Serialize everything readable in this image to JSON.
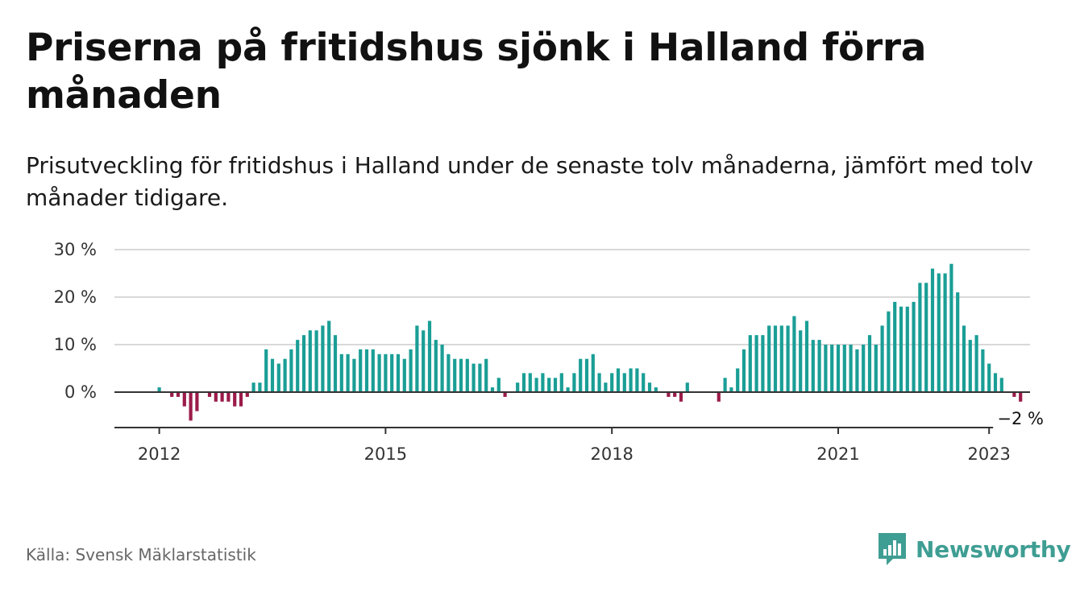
{
  "header": {
    "title": "Priserna på fritidshus sjönk i Halland förra månaden",
    "subtitle": "Prisutveckling för fritidshus i Halland under de senaste tolv månaderna, jämfört med tolv månader tidigare."
  },
  "footer": {
    "source": "Källa: Svensk Mäklarstatistik",
    "brand": "Newsworthy",
    "brand_icon": "bar-chart-logo-icon"
  },
  "colors": {
    "positive": "#1a9e96",
    "negative": "#9b1b4a",
    "grid": "#d9d9d9",
    "axis": "#333333",
    "brand": "#3f9e93"
  },
  "chart_data": {
    "type": "bar",
    "title": "",
    "xlabel": "",
    "ylabel": "",
    "ylim": [
      -7,
      30
    ],
    "yticks": [
      0,
      10,
      20,
      30
    ],
    "ytick_labels": [
      "0 %",
      "10 %",
      "20 %",
      "30 %"
    ],
    "xticks": [
      "2012",
      "2015",
      "2018",
      "2021",
      "2023"
    ],
    "last_value_label": "−2 %",
    "grid": true,
    "legend": "none",
    "start": "2012-01",
    "frequency": "monthly",
    "values": [
      1,
      0,
      -1,
      -1,
      -3,
      -6,
      -4,
      0,
      -1,
      -2,
      -2,
      -2,
      -3,
      -3,
      -1,
      2,
      2,
      9,
      7,
      6,
      7,
      9,
      11,
      12,
      13,
      13,
      14,
      15,
      12,
      8,
      8,
      7,
      9,
      9,
      9,
      8,
      8,
      8,
      8,
      7,
      9,
      14,
      13,
      15,
      11,
      10,
      8,
      7,
      7,
      7,
      6,
      6,
      7,
      1,
      3,
      -1,
      0,
      2,
      4,
      4,
      3,
      4,
      3,
      3,
      4,
      1,
      4,
      7,
      7,
      8,
      4,
      2,
      4,
      5,
      4,
      5,
      5,
      4,
      2,
      1,
      0,
      -1,
      -1,
      -2,
      2,
      0,
      0,
      0,
      0,
      -2,
      3,
      1,
      5,
      9,
      12,
      12,
      12,
      14,
      14,
      14,
      14,
      16,
      13,
      15,
      11,
      11,
      10,
      10,
      10,
      10,
      10,
      9,
      10,
      12,
      10,
      14,
      17,
      19,
      18,
      18,
      19,
      23,
      23,
      26,
      25,
      25,
      27,
      21,
      14,
      11,
      12,
      9,
      6,
      4,
      3,
      0,
      -1,
      -2
    ]
  }
}
